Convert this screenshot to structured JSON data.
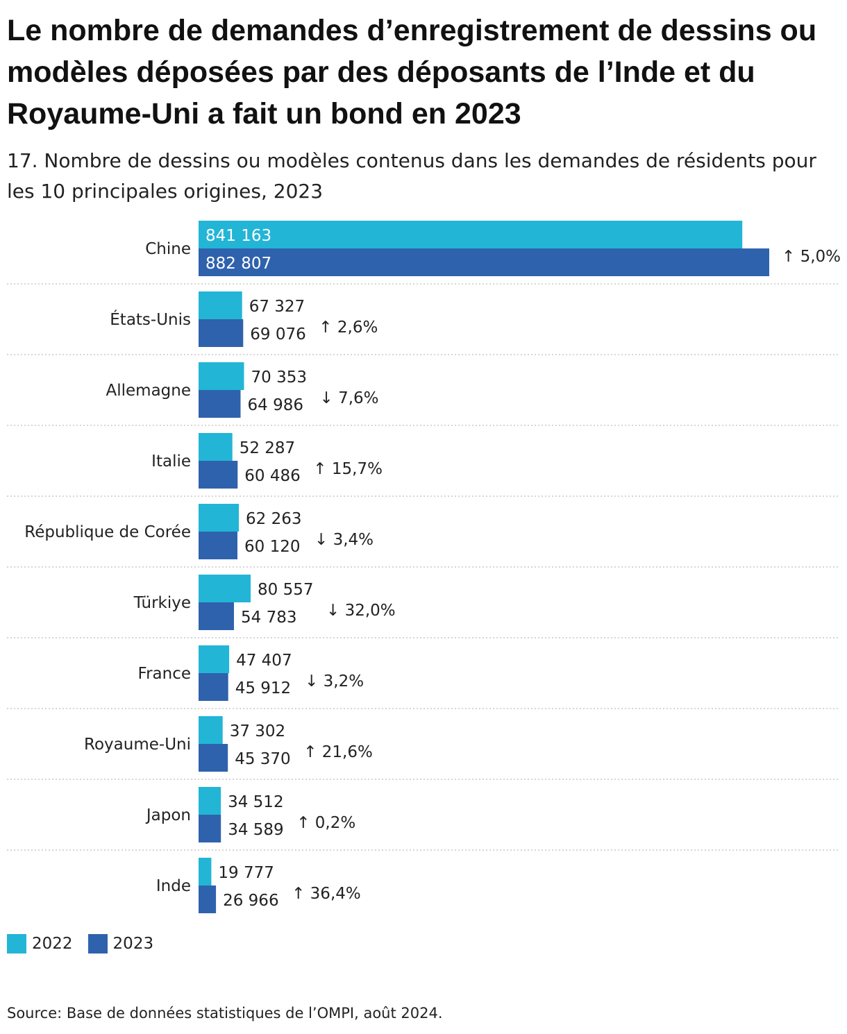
{
  "title": "Le nombre de demandes d’enregistrement de dessins ou modèles déposées par des déposants de l’Inde et du Royaume-Uni a fait un bond en 2023",
  "subtitle": "17. Nombre de dessins ou modèles contenus dans les demandes de résidents pour les 10 principales origines, 2023",
  "source": "Source: Base de données statistiques de l’OMPI, août 2024.",
  "colors": {
    "s2022": "#22b5d6",
    "s2023": "#2f62ad",
    "separator": "#c8c8c8"
  },
  "chart_data": {
    "type": "bar",
    "orientation": "horizontal",
    "categories": [
      "Chine",
      "États-Unis",
      "Allemagne",
      "Italie",
      "République de Corée",
      "Türkiye",
      "France",
      "Royaume-Uni",
      "Japon",
      "Inde"
    ],
    "series": [
      {
        "name": "2022",
        "color": "#22b5d6",
        "values": [
          841163,
          67327,
          70353,
          52287,
          62263,
          80557,
          47407,
          37302,
          34512,
          19777
        ],
        "labels": [
          "841 163",
          "67 327",
          "70 353",
          "52 287",
          "62 263",
          "80 557",
          "47 407",
          "37 302",
          "34 512",
          "19 777"
        ]
      },
      {
        "name": "2023",
        "color": "#2f62ad",
        "values": [
          882807,
          69076,
          64986,
          60486,
          60120,
          54783,
          45912,
          45370,
          34589,
          26966
        ],
        "labels": [
          "882 807",
          "69 076",
          "64 986",
          "60 486",
          "60 120",
          "54 783",
          "45 912",
          "45 370",
          "34 589",
          "26 966"
        ]
      }
    ],
    "changes": [
      "↑ 5,0%",
      "↑ 2,6%",
      "↓ 7,6%",
      "↑ 15,7%",
      "↓ 3,4%",
      "↓ 32,0%",
      "↓ 3,2%",
      "↑ 21,6%",
      "↑ 0,2%",
      "↑ 36,4%"
    ],
    "xlim": [
      0,
      882807
    ],
    "legend": "bottom-left",
    "grid": false
  }
}
